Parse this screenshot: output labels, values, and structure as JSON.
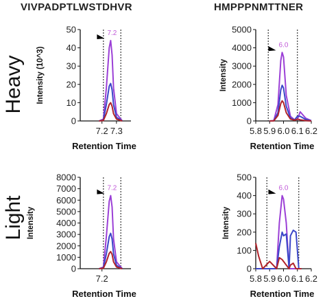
{
  "columns": [
    "VIVPADPTLWSTDHVR",
    "HMPPPNMTTNER"
  ],
  "rows": [
    "Heavy",
    "Light"
  ],
  "colors": {
    "purple": "#9b3fd6",
    "blue": "#3a46c8",
    "red": "#b0222a",
    "rt": "#c05ad8"
  },
  "chart_data": [
    {
      "type": "line",
      "row": "Heavy",
      "peptide": "VIVPADPTLWSTDHVR",
      "xlabel": "Retention Time",
      "ylabel": "Intensity (10^3)",
      "xlim": [
        7.05,
        7.4
      ],
      "ylim": [
        0,
        50
      ],
      "xticks": [
        7.2,
        7.3
      ],
      "xticklabels": [
        "7.2",
        "7.3"
      ],
      "yticks": [
        0,
        10,
        20,
        30,
        40,
        50
      ],
      "yticklabels": [
        "0",
        "10",
        "20",
        "30",
        "40",
        "50"
      ],
      "boundaries": [
        7.21,
        7.33
      ],
      "peak": {
        "label": "7.2",
        "x": 7.26
      },
      "series": [
        {
          "color": "purple",
          "x": [
            7.18,
            7.21,
            7.23,
            7.25,
            7.26,
            7.27,
            7.28,
            7.3,
            7.34
          ],
          "y": [
            0,
            1,
            18,
            40,
            44,
            36,
            18,
            4,
            0
          ]
        },
        {
          "color": "blue",
          "x": [
            7.18,
            7.21,
            7.23,
            7.25,
            7.26,
            7.27,
            7.28,
            7.3,
            7.34
          ],
          "y": [
            0,
            0.5,
            9,
            19,
            20.5,
            17,
            9,
            2,
            0
          ]
        },
        {
          "color": "red",
          "x": [
            7.18,
            7.21,
            7.23,
            7.25,
            7.26,
            7.27,
            7.28,
            7.3,
            7.34
          ],
          "y": [
            0,
            0.3,
            4,
            9,
            10,
            8,
            4,
            1,
            0
          ]
        }
      ]
    },
    {
      "type": "line",
      "row": "Heavy",
      "peptide": "HMPPPNMTTNER",
      "xlabel": "Retention Time",
      "ylabel": "Intensity",
      "xlim": [
        5.8,
        6.2
      ],
      "ylim": [
        0,
        5000
      ],
      "xticks": [
        5.8,
        5.9,
        6.0,
        6.1,
        6.2
      ],
      "xticklabels": [
        "5.8",
        "5.9",
        "6.0",
        "6.1",
        "6.2"
      ],
      "yticks": [
        0,
        1000,
        2000,
        3000,
        4000,
        5000
      ],
      "yticklabels": [
        "0",
        "1000",
        "2000",
        "3000",
        "4000",
        "5000"
      ],
      "boundaries": [
        5.89,
        6.1
      ],
      "peak": {
        "label": "6.0",
        "x": 5.99
      },
      "series": [
        {
          "color": "purple",
          "x": [
            5.9,
            5.93,
            5.96,
            5.98,
            5.99,
            6.0,
            6.02,
            6.05,
            6.08,
            6.1,
            6.12,
            6.16,
            6.2
          ],
          "y": [
            0,
            20,
            900,
            3300,
            3750,
            3500,
            1400,
            250,
            60,
            80,
            500,
            150,
            20
          ]
        },
        {
          "color": "blue",
          "x": [
            5.9,
            5.93,
            5.96,
            5.98,
            5.99,
            6.0,
            6.02,
            6.05,
            6.08,
            6.1,
            6.12,
            6.16,
            6.2
          ],
          "y": [
            0,
            10,
            450,
            1700,
            1950,
            1800,
            800,
            150,
            60,
            250,
            250,
            80,
            10
          ]
        },
        {
          "color": "red",
          "x": [
            5.9,
            5.93,
            5.96,
            5.98,
            5.99,
            6.0,
            6.02,
            6.05,
            6.08,
            6.1,
            6.12,
            6.16,
            6.2
          ],
          "y": [
            0,
            5,
            300,
            950,
            1100,
            1000,
            450,
            100,
            40,
            100,
            60,
            20,
            0
          ]
        }
      ]
    },
    {
      "type": "line",
      "row": "Light",
      "peptide": "VIVPADPTLWSTDHVR",
      "xlabel": "Retention Time",
      "ylabel": "Intensity",
      "xlim": [
        7.05,
        7.4
      ],
      "ylim": [
        0,
        8000
      ],
      "xticks": [
        7.2
      ],
      "xticklabels": [
        "7.2"
      ],
      "yticks": [
        0,
        1000,
        2000,
        3000,
        4000,
        5000,
        6000,
        7000,
        8000
      ],
      "yticklabels": [
        "0",
        "1000",
        "2000",
        "3000",
        "4000",
        "5000",
        "6000",
        "7000",
        "8000"
      ],
      "boundaries": [
        7.21,
        7.33
      ],
      "peak": {
        "label": "7.2",
        "x": 7.26
      },
      "series": [
        {
          "color": "purple",
          "x": [
            7.18,
            7.21,
            7.23,
            7.25,
            7.26,
            7.27,
            7.28,
            7.3,
            7.34
          ],
          "y": [
            0,
            150,
            2800,
            5900,
            6400,
            5400,
            2600,
            600,
            0
          ]
        },
        {
          "color": "blue",
          "x": [
            7.18,
            7.21,
            7.23,
            7.25,
            7.26,
            7.27,
            7.28,
            7.3,
            7.34
          ],
          "y": [
            0,
            80,
            1300,
            2800,
            3100,
            2600,
            1300,
            300,
            0
          ]
        },
        {
          "color": "red",
          "x": [
            7.18,
            7.21,
            7.23,
            7.25,
            7.26,
            7.27,
            7.28,
            7.3,
            7.34
          ],
          "y": [
            0,
            40,
            600,
            1350,
            1500,
            1250,
            600,
            150,
            0
          ]
        }
      ]
    },
    {
      "type": "line",
      "row": "Light",
      "peptide": "HMPPPNMTTNER",
      "xlabel": "Retention Time",
      "ylabel": "Intensity",
      "xlim": [
        5.8,
        6.2
      ],
      "ylim": [
        0,
        500
      ],
      "xticks": [
        5.8,
        5.9,
        6.0,
        6.1,
        6.2
      ],
      "xticklabels": [
        "5.8",
        "5.9",
        "6.0",
        "6.1",
        "6.2"
      ],
      "yticks": [
        0,
        100,
        200,
        300,
        400,
        500
      ],
      "yticklabels": [
        "0",
        "100",
        "200",
        "300",
        "400",
        "500"
      ],
      "boundaries": [
        5.88,
        6.11
      ],
      "peak": {
        "label": "6.0",
        "x": 5.99
      },
      "series": [
        {
          "color": "purple",
          "x": [
            5.8,
            5.82,
            5.85,
            5.9,
            5.95,
            5.97,
            5.99,
            6.0,
            6.02,
            6.04,
            6.05,
            6.07,
            6.09,
            6.11,
            6.13
          ],
          "y": [
            0,
            0,
            0,
            0,
            0,
            250,
            400,
            380,
            250,
            0,
            0,
            0,
            0,
            0,
            0
          ]
        },
        {
          "color": "blue",
          "x": [
            5.8,
            5.82,
            5.85,
            5.9,
            5.95,
            5.97,
            5.99,
            6.0,
            6.02,
            6.04,
            6.05,
            6.07,
            6.09,
            6.11,
            6.13
          ],
          "y": [
            0,
            0,
            0,
            0,
            0,
            120,
            200,
            180,
            190,
            0,
            180,
            210,
            200,
            0,
            0
          ]
        },
        {
          "color": "red",
          "x": [
            5.8,
            5.82,
            5.85,
            5.9,
            5.95,
            5.97,
            5.99,
            6.0,
            6.02,
            6.04,
            6.05,
            6.07,
            6.09,
            6.11,
            6.13
          ],
          "y": [
            140,
            70,
            0,
            40,
            0,
            60,
            50,
            40,
            20,
            0,
            20,
            30,
            0,
            0,
            0
          ]
        }
      ]
    }
  ]
}
